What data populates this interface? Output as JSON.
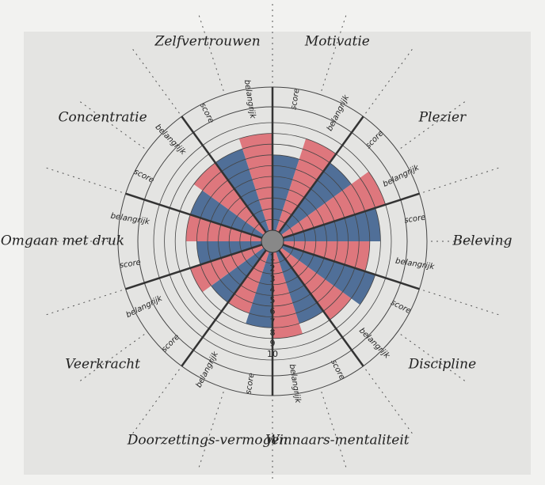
{
  "chart_data": {
    "type": "polar-bar",
    "categories": [
      "Zelfvertrouwen",
      "Motivatie",
      "Plezier",
      "Beleving",
      "Discipline",
      "Winnaars-mentaliteit",
      "Doorzettings-vermogen",
      "Veerkracht",
      "Omgaan met druk",
      "Concentratie"
    ],
    "series": [
      {
        "name": "score",
        "color": "#3f6290",
        "values": [
          8,
          7,
          8,
          9,
          9,
          7,
          7,
          6,
          6,
          7
        ]
      },
      {
        "name": "belangrijk",
        "color": "#dd6a72",
        "values": [
          9,
          9,
          10,
          8,
          8,
          8,
          6,
          7,
          7,
          8
        ]
      }
    ],
    "rlim": [
      0,
      10
    ],
    "rticks": [
      1,
      2,
      3,
      4,
      5,
      6,
      7,
      8,
      9,
      10
    ]
  }
}
